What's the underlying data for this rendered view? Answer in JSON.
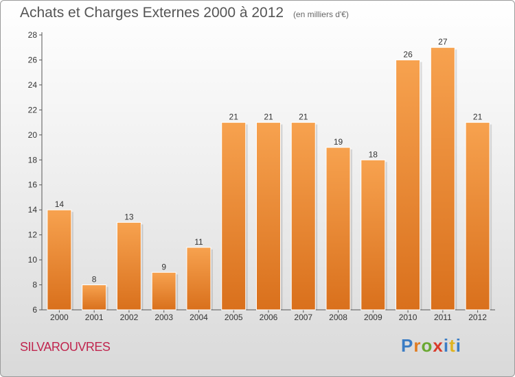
{
  "chart_data": {
    "type": "bar",
    "title": "Achats et Charges Externes 2000 à 2012",
    "subtitle": "(en milliers d'€)",
    "categories": [
      "2000",
      "2001",
      "2002",
      "2003",
      "2004",
      "2005",
      "2006",
      "2007",
      "2008",
      "2009",
      "2010",
      "2011",
      "2012"
    ],
    "values": [
      14,
      8,
      13,
      9,
      11,
      21,
      21,
      21,
      19,
      18,
      26,
      27,
      21
    ],
    "ylim": [
      6,
      28
    ],
    "yticks": [
      6,
      8,
      10,
      12,
      14,
      16,
      18,
      20,
      22,
      24,
      26,
      28
    ],
    "xlabel": "",
    "ylabel": "",
    "grid": false,
    "bar_color_light": "#f7a24f",
    "bar_color_dark": "#d9701c"
  },
  "footer": {
    "place_name": "SILVAROUVRES",
    "logo_letters": [
      "P",
      "r",
      "o",
      "x",
      "i",
      "t",
      "i"
    ],
    "logo_colors": [
      "#3a7cc4",
      "#e07b20",
      "#6aa832",
      "#d93a2a",
      "#3a7cc4",
      "#e0b420",
      "#3a7cc4"
    ]
  },
  "colors": {
    "place_name": "#c0254e",
    "title": "#555555"
  }
}
